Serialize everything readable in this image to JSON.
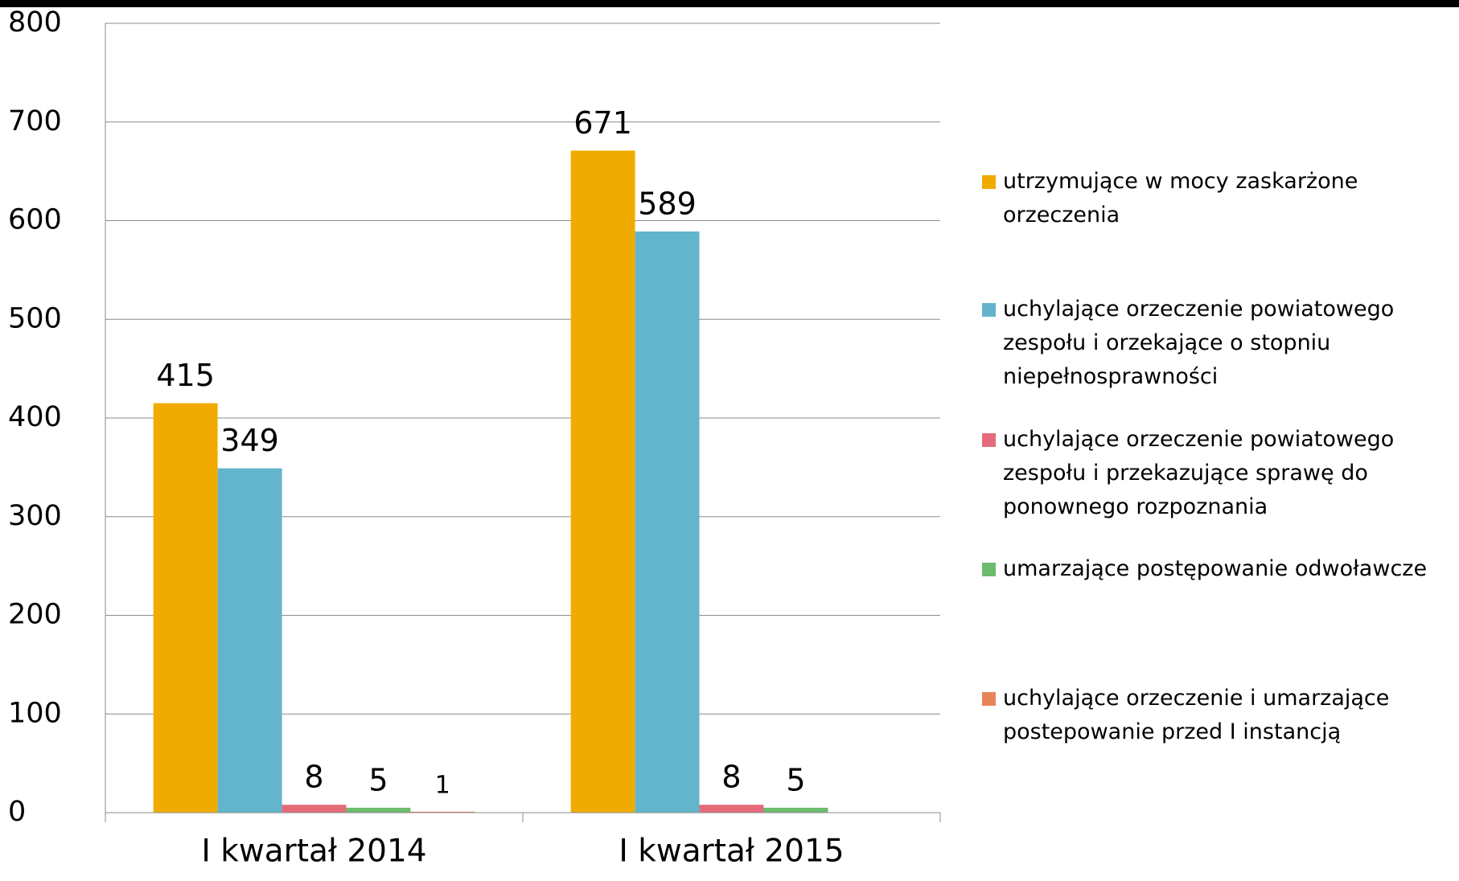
{
  "chart_data": {
    "type": "bar",
    "categories": [
      "I kwartał 2014",
      "I kwartał 2015"
    ],
    "series": [
      {
        "name": "utrzymujące w mocy zaskarżone orzeczenia",
        "color": "#f0ab00",
        "values": [
          415,
          671
        ]
      },
      {
        "name": "uchylające orzeczenie powiatowego zespołu i orzekające o stopniu niepełnosprawności",
        "color": "#62b5cc",
        "values": [
          349,
          589
        ]
      },
      {
        "name": "uchylające orzeczenie powiatowego zespołu i przekazujące sprawę do ponownego rozpoznania",
        "color": "#e56b7a",
        "values": [
          8,
          8
        ]
      },
      {
        "name": "umarzające postępowanie odwoławcze",
        "color": "#6dbb6c",
        "values": [
          5,
          5
        ]
      },
      {
        "name": "uchylające orzeczenie i umarzające postepowanie przed I instancją",
        "color": "#e8845a",
        "values": [
          1,
          null
        ]
      }
    ],
    "ylim": [
      0,
      800
    ],
    "yticks": [
      0,
      100,
      200,
      300,
      400,
      500,
      600,
      700,
      800
    ],
    "grid": true,
    "legend": "right"
  }
}
